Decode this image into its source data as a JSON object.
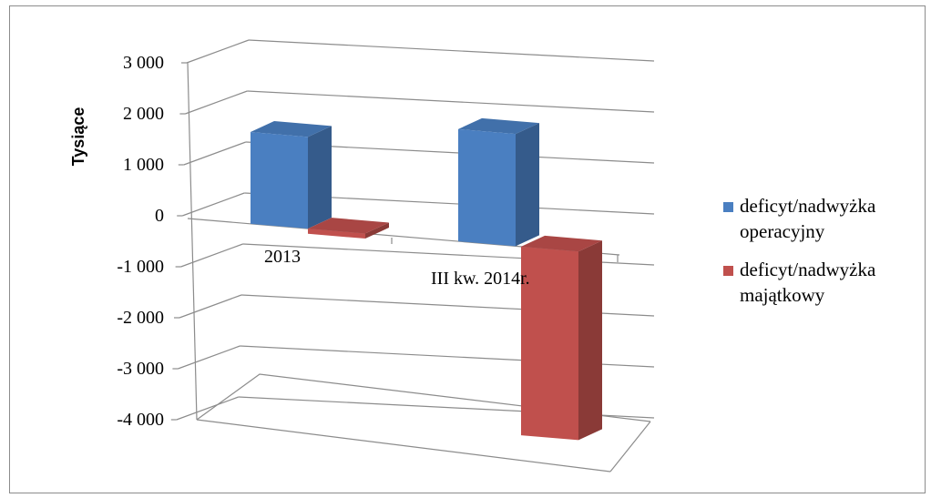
{
  "chart_data": {
    "type": "bar",
    "view": "3d",
    "title": "",
    "ylabel": "Tysiące",
    "categories": [
      "2013",
      "III kw. 2014r."
    ],
    "series": [
      {
        "name": "deficyt/nadwyżka operacyjny",
        "legend_lines": [
          "deficyt/nadwyżka",
          "operacyjny"
        ],
        "color": "#4a7fc1",
        "values": [
          1800,
          2200
        ]
      },
      {
        "name": "deficyt/nadwyżka majątkowy",
        "legend_lines": [
          "deficyt/nadwyżka",
          "majątkowy"
        ],
        "color": "#c0504d",
        "values": [
          -100,
          -3700
        ]
      }
    ],
    "yticks": [
      "3 000",
      "2 000",
      "1 000",
      "0",
      "-1 000",
      "-2 000",
      "-3 000",
      "-4 000"
    ],
    "ylim": [
      -4000,
      3000
    ],
    "grid": true,
    "legend_position": "right"
  }
}
